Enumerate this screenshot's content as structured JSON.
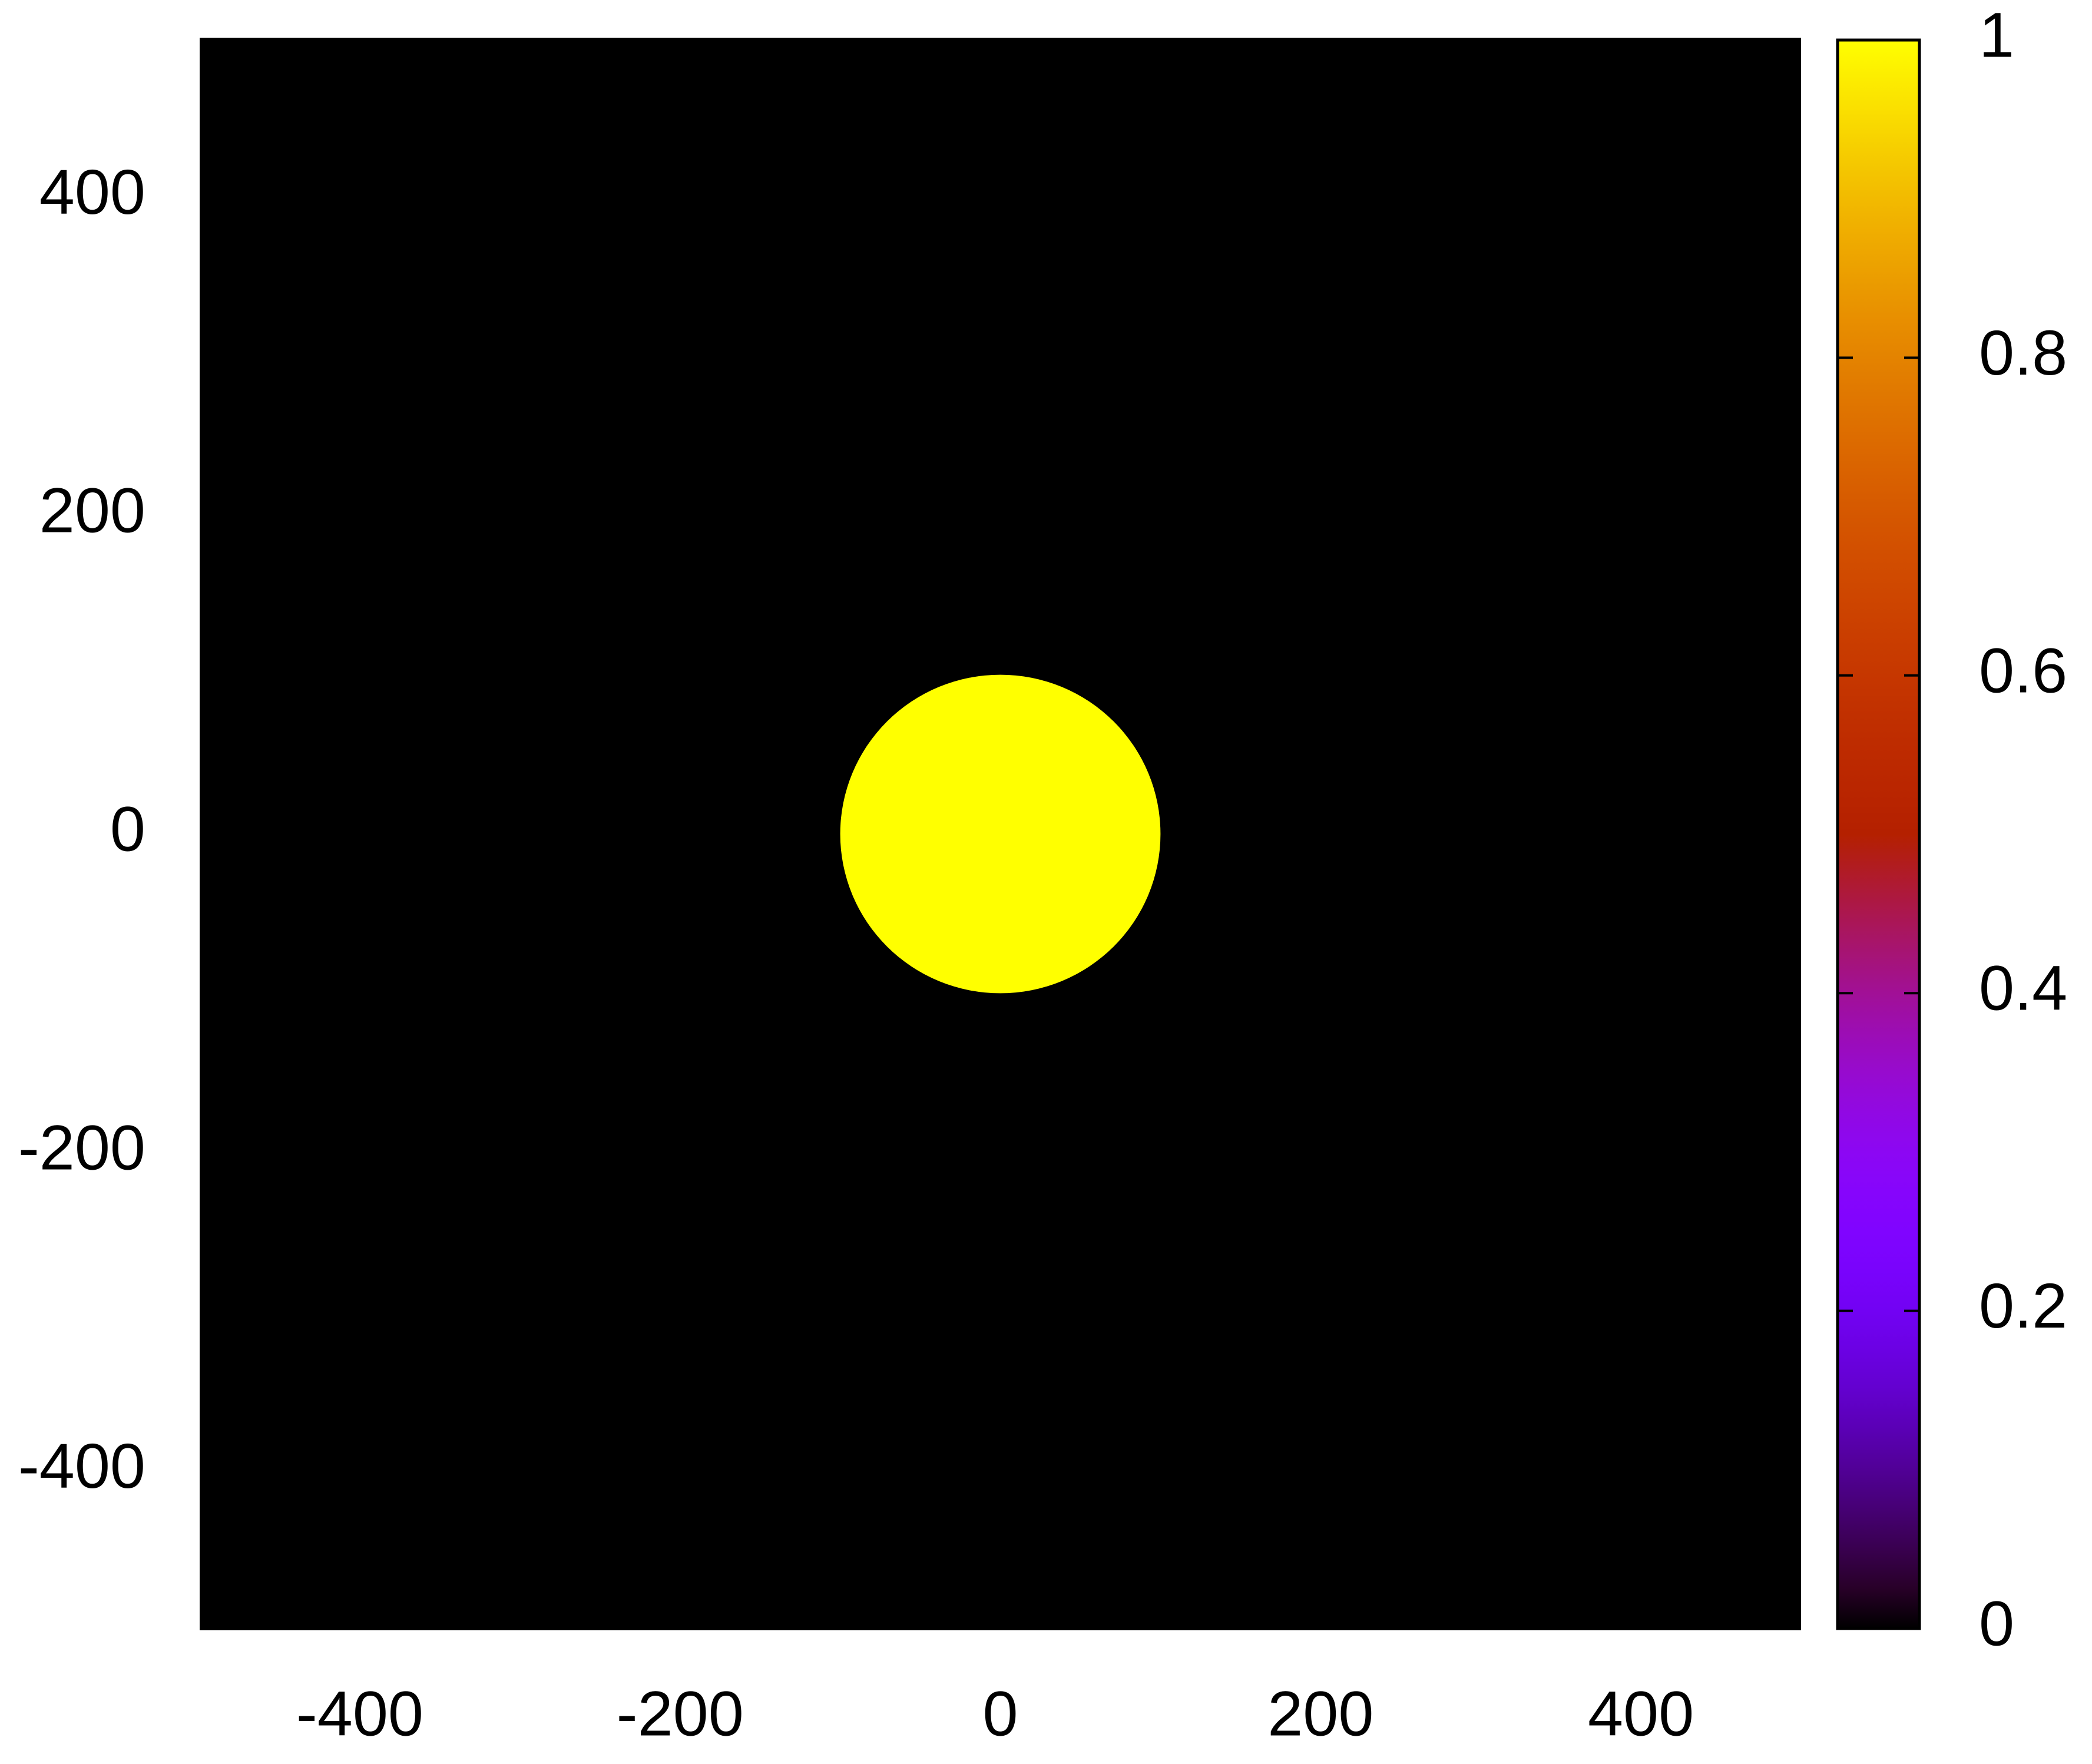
{
  "chart_data": {
    "type": "heatmap",
    "xlim": [
      -500,
      500
    ],
    "xticks": [
      -400,
      -200,
      0,
      200,
      400
    ],
    "ylim": [
      -500,
      500
    ],
    "yticks": [
      -400,
      -200,
      0,
      200,
      400
    ],
    "background_value": 0,
    "disc": {
      "x": 0,
      "y": 0,
      "radius": 100,
      "value": 1
    },
    "palette": "gnuplot",
    "clim": [
      0,
      1
    ],
    "cticks": [
      0,
      0.2,
      0.4,
      0.6,
      0.8,
      1
    ]
  }
}
